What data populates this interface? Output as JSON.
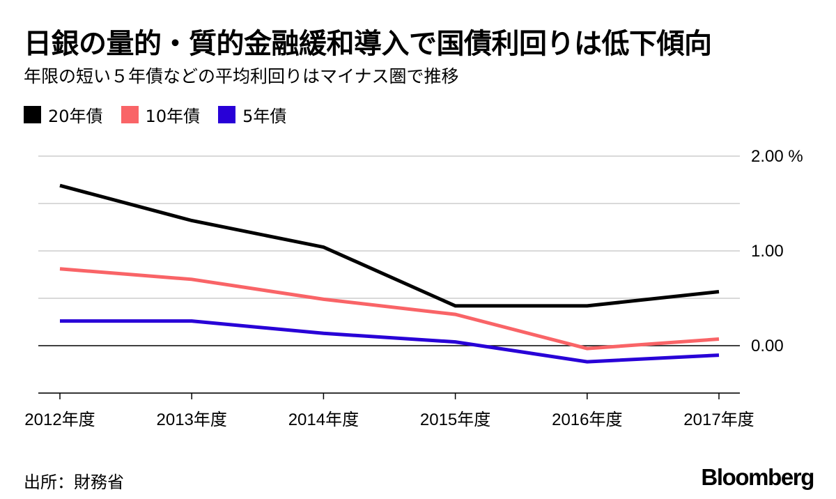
{
  "title": "日銀の量的・質的金融緩和導入で国債利回りは低下傾向",
  "subtitle": "年限の短い５年債などの平均利回りはマイナス圏で推移",
  "source": "出所：財務省",
  "brand": "Bloomberg",
  "colors": {
    "grid": "#d9d9d9",
    "zero_line": "#000000",
    "axis": "#000000"
  },
  "chart_data": {
    "type": "line",
    "title": "日銀の量的・質的金融緩和導入で国債利回りは低下傾向",
    "subtitle": "年限の短い５年債などの平均利回りはマイナス圏で推移",
    "xlabel": "",
    "ylabel": "",
    "categories": [
      "2012年度",
      "2013年度",
      "2014年度",
      "2015年度",
      "2016年度",
      "2017年度"
    ],
    "ylim": [
      -0.5,
      2.0
    ],
    "y_ticks": [
      {
        "value": 2.0,
        "label": "2.00 %"
      },
      {
        "value": 1.0,
        "label": "1.00"
      },
      {
        "value": 0.0,
        "label": "0.00"
      }
    ],
    "grid_values": [
      2.0,
      1.5,
      1.0,
      0.5,
      0.0,
      -0.5
    ],
    "grid": true,
    "legend_position": "top-left",
    "series": [
      {
        "name": "20年債",
        "color": "#000000",
        "values": [
          1.69,
          1.32,
          1.04,
          0.42,
          0.42,
          0.57
        ]
      },
      {
        "name": "10年債",
        "color": "#f96467",
        "values": [
          0.81,
          0.7,
          0.49,
          0.33,
          -0.03,
          0.07
        ]
      },
      {
        "name": "5年債",
        "color": "#2800d7",
        "values": [
          0.26,
          0.26,
          0.13,
          0.04,
          -0.17,
          -0.1
        ]
      }
    ]
  }
}
